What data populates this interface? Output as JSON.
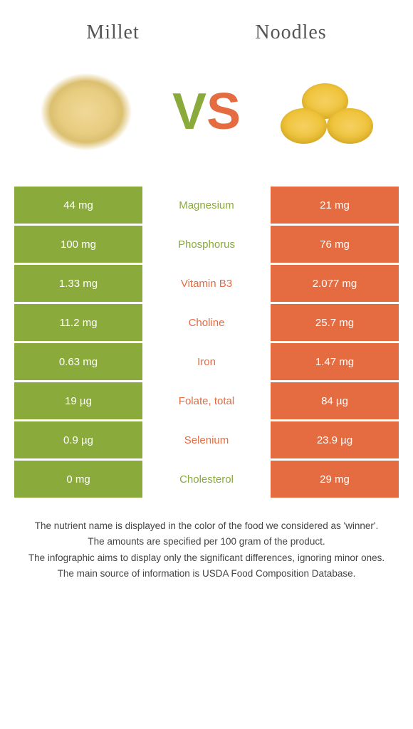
{
  "colors": {
    "green": "#8aaa3b",
    "orange": "#e56b40",
    "white": "#ffffff"
  },
  "food_a": {
    "name": "Millet"
  },
  "food_b": {
    "name": "Noodles"
  },
  "vs": {
    "v": "V",
    "s": "S"
  },
  "rows": [
    {
      "left": "44 mg",
      "nutrient": "Magnesium",
      "right": "21 mg",
      "winner": "a"
    },
    {
      "left": "100 mg",
      "nutrient": "Phosphorus",
      "right": "76 mg",
      "winner": "a"
    },
    {
      "left": "1.33 mg",
      "nutrient": "Vitamin B3",
      "right": "2.077 mg",
      "winner": "b"
    },
    {
      "left": "11.2 mg",
      "nutrient": "Choline",
      "right": "25.7 mg",
      "winner": "b"
    },
    {
      "left": "0.63 mg",
      "nutrient": "Iron",
      "right": "1.47 mg",
      "winner": "b"
    },
    {
      "left": "19 µg",
      "nutrient": "Folate, total",
      "right": "84 µg",
      "winner": "b"
    },
    {
      "left": "0.9 µg",
      "nutrient": "Selenium",
      "right": "23.9 µg",
      "winner": "b"
    },
    {
      "left": "0 mg",
      "nutrient": "Cholesterol",
      "right": "29 mg",
      "winner": "a"
    }
  ],
  "footer": {
    "l1": "The nutrient name is displayed in the color of the food we considered as 'winner'.",
    "l2": "The amounts are specified per 100 gram of the product.",
    "l3": "The infographic aims to display only the significant differences, ignoring minor ones.",
    "l4": "The main source of information is USDA Food Composition Database."
  }
}
